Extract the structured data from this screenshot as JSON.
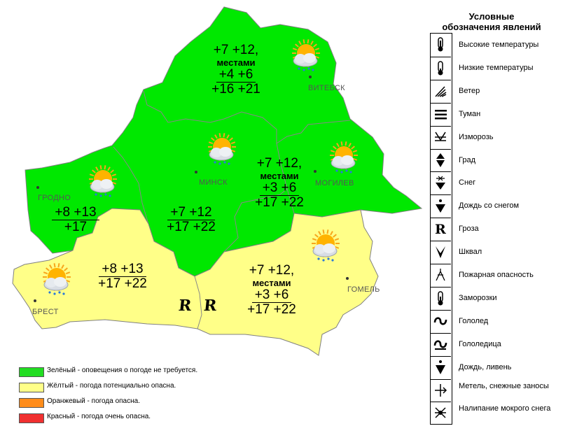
{
  "regions": {
    "vitebsk": {
      "line1": "+7 +12,",
      "line2": "местами",
      "line3": "+4 +6",
      "line4": "+16 +21"
    },
    "minsk_mogilev": {
      "line1": "+7 +12,",
      "line2": "местами",
      "line3": "+3 +6",
      "line4": "+17 +22"
    },
    "grodno": {
      "line1": "+8 +13",
      "line2": "+17"
    },
    "minsk_south": {
      "line1": "+7 +12",
      "line2": "+17 +22"
    },
    "brest": {
      "line1": "+8 +13",
      "line2": "+17 +22"
    },
    "gomel": {
      "line1": "+7 +12,",
      "line2": "местами",
      "line3": "+3 +6",
      "line4": "+17 +22"
    }
  },
  "cities": {
    "vitebsk": "ВИТЕБСК",
    "minsk": "МИНСК",
    "mogilev": "МОГИЛЕВ",
    "grodno": "ГРОДНО",
    "brest": "БРЕСТ",
    "gomel": "ГОМЕЛЬ"
  },
  "storm_symbol": "R",
  "colors": {
    "green": "#00e800",
    "yellow": "#ffff88",
    "orange": "#ff8c1a",
    "red": "#f03030",
    "border": "#888888"
  },
  "warning_legend": [
    {
      "color": "#22dd22",
      "text": "Зелёный - оповещения о погоде не требуется."
    },
    {
      "color": "#ffff88",
      "text": "Жёлтый - погода потенциально опасна."
    },
    {
      "color": "#ff8c1a",
      "text": "Оранжевый - погода опасна."
    },
    {
      "color": "#f03030",
      "text": "Красный - погода очень опасна."
    }
  ],
  "legend": {
    "title_line1": "Условные",
    "title_line2": "обозначения явлений",
    "items": [
      {
        "label": "Высокие температуры",
        "icon": "thermometer-high-icon"
      },
      {
        "label": "Низкие температуры",
        "icon": "thermometer-low-icon"
      },
      {
        "label": "Ветер",
        "icon": "wind-icon"
      },
      {
        "label": "Туман",
        "icon": "fog-icon"
      },
      {
        "label": "Изморозь",
        "icon": "rime-icon"
      },
      {
        "label": "Град",
        "icon": "hail-icon"
      },
      {
        "label": "Снег",
        "icon": "snow-icon"
      },
      {
        "label": "Дождь со снегом",
        "icon": "sleet-icon"
      },
      {
        "label": "Гроза",
        "icon": "thunderstorm-icon"
      },
      {
        "label": "Шквал",
        "icon": "squall-icon"
      },
      {
        "label": "Пожарная опасность",
        "icon": "fire-danger-icon"
      },
      {
        "label": "Заморозки",
        "icon": "frost-icon"
      },
      {
        "label": "Гололед",
        "icon": "glaze-icon"
      },
      {
        "label": "Гололедица",
        "icon": "black-ice-icon"
      },
      {
        "label": "Дождь, ливень",
        "icon": "rain-icon"
      },
      {
        "label": "Метель, снежные заносы",
        "icon": "blizzard-icon"
      },
      {
        "label": "Налипание мокрого снега",
        "icon": "wet-snow-icon"
      }
    ]
  }
}
